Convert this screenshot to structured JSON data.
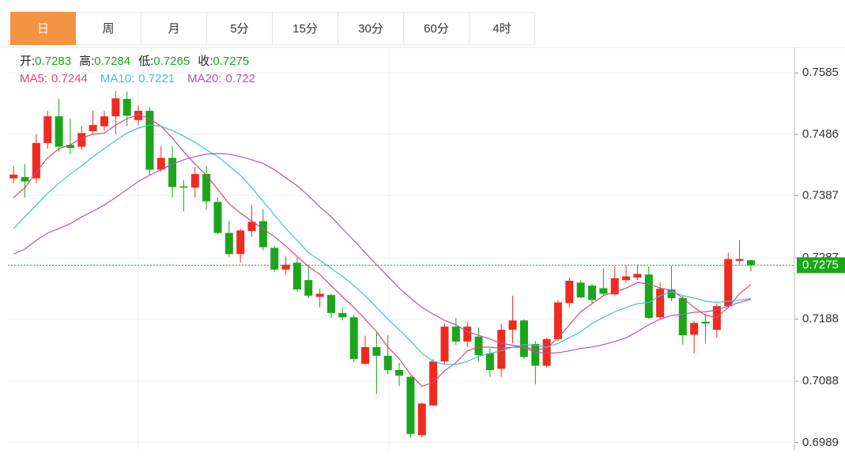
{
  "tabs": [
    "日",
    "周",
    "月",
    "5分",
    "15分",
    "30分",
    "60分",
    "4时"
  ],
  "chart_data": {
    "type": "candlestick",
    "ohlc_labels": [
      "开:",
      "高:",
      "低:",
      "收:"
    ],
    "up_color": "#ef2b1f",
    "down_color": "#1aa51a",
    "open": [
      0.7415,
      0.7417,
      0.7415,
      0.7472,
      0.7515,
      0.7469,
      0.7466,
      0.7491,
      0.7499,
      0.7515,
      0.7543,
      0.7509,
      0.7524,
      0.7429,
      0.7448,
      0.7402,
      0.74,
      0.7422,
      0.7377,
      0.7327,
      0.7293,
      0.733,
      0.7346,
      0.7303,
      0.7268,
      0.7279,
      0.7251,
      0.7224,
      0.7227,
      0.7198,
      0.7191,
      0.7116,
      0.7143,
      0.7129,
      0.7106,
      0.7095,
      0.7001,
      0.7049,
      0.712,
      0.7176,
      0.7152,
      0.716,
      0.7133,
      0.7108,
      0.7171,
      0.7186,
      0.7148,
      0.7113,
      0.7156,
      0.7214,
      0.7247,
      0.7242,
      0.7238,
      0.7228,
      0.7251,
      0.7255,
      0.726,
      0.7191,
      0.7236,
      0.7222,
      0.7163,
      0.7184,
      0.7171,
      0.7209,
      0.7282,
      0.7283
    ],
    "high": [
      0.7435,
      0.7438,
      0.7486,
      0.7524,
      0.7543,
      0.7511,
      0.7499,
      0.7524,
      0.7524,
      0.7556,
      0.7555,
      0.7533,
      0.753,
      0.7467,
      0.7467,
      0.7412,
      0.7433,
      0.7435,
      0.7384,
      0.7346,
      0.7334,
      0.7372,
      0.7365,
      0.7306,
      0.7289,
      0.7287,
      0.7276,
      0.7237,
      0.7229,
      0.7207,
      0.7196,
      0.7162,
      0.7168,
      0.7162,
      0.7118,
      0.7097,
      0.7054,
      0.7124,
      0.7181,
      0.719,
      0.7184,
      0.7175,
      0.7141,
      0.7181,
      0.7226,
      0.7188,
      0.7153,
      0.7158,
      0.7219,
      0.7255,
      0.7251,
      0.7245,
      0.727,
      0.7274,
      0.7274,
      0.7276,
      0.7273,
      0.7247,
      0.7274,
      0.7226,
      0.7185,
      0.7198,
      0.7213,
      0.7295,
      0.7315,
      0.7284
    ],
    "low": [
      0.7407,
      0.7384,
      0.7407,
      0.7463,
      0.7458,
      0.7454,
      0.7461,
      0.7486,
      0.7492,
      0.7486,
      0.7499,
      0.7501,
      0.742,
      0.7425,
      0.7384,
      0.7362,
      0.7384,
      0.7365,
      0.7325,
      0.7288,
      0.7279,
      0.7321,
      0.7299,
      0.7264,
      0.726,
      0.7232,
      0.7222,
      0.7207,
      0.719,
      0.7186,
      0.7118,
      0.7115,
      0.7067,
      0.7099,
      0.708,
      0.6997,
      0.6997,
      0.7048,
      0.7115,
      0.7146,
      0.7143,
      0.712,
      0.7095,
      0.7095,
      0.7149,
      0.7124,
      0.7083,
      0.711,
      0.7152,
      0.7207,
      0.7222,
      0.7213,
      0.7226,
      0.7226,
      0.7247,
      0.7251,
      0.7188,
      0.7188,
      0.7217,
      0.7147,
      0.7133,
      0.7149,
      0.7158,
      0.7207,
      0.7276,
      0.7265
    ],
    "close": [
      0.7421,
      0.741,
      0.7472,
      0.7515,
      0.7466,
      0.7464,
      0.7488,
      0.7501,
      0.7515,
      0.7544,
      0.7516,
      0.7524,
      0.7429,
      0.7448,
      0.7401,
      0.74,
      0.7422,
      0.7378,
      0.7327,
      0.7293,
      0.7331,
      0.7345,
      0.7304,
      0.7268,
      0.7276,
      0.7236,
      0.7226,
      0.7229,
      0.7198,
      0.7191,
      0.7124,
      0.7143,
      0.7129,
      0.7106,
      0.7097,
      0.7003,
      0.7052,
      0.712,
      0.7176,
      0.7152,
      0.7176,
      0.713,
      0.7106,
      0.7171,
      0.7186,
      0.7127,
      0.7113,
      0.7156,
      0.7215,
      0.725,
      0.7223,
      0.7219,
      0.7229,
      0.7254,
      0.7257,
      0.7261,
      0.719,
      0.7237,
      0.7222,
      0.7162,
      0.7182,
      0.7181,
      0.7209,
      0.7285,
      0.7285,
      0.7275
    ],
    "series": [
      {
        "name": "MA5:",
        "color": "#e6447a",
        "values": [
          0.7384,
          0.74,
          0.7425,
          0.7448,
          0.7463,
          0.7469,
          0.748,
          0.7486,
          0.7488,
          0.7501,
          0.7511,
          0.7518,
          0.7511,
          0.7499,
          0.748,
          0.7458,
          0.7438,
          0.742,
          0.7397,
          0.7374,
          0.7359,
          0.7346,
          0.7334,
          0.7321,
          0.7306,
          0.7289,
          0.7273,
          0.726,
          0.7242,
          0.7224,
          0.7207,
          0.7188,
          0.7168,
          0.7143,
          0.7124,
          0.7099,
          0.708,
          0.7086,
          0.7105,
          0.7118,
          0.7137,
          0.7143,
          0.7143,
          0.7141,
          0.7143,
          0.7143,
          0.7139,
          0.7141,
          0.7158,
          0.7179,
          0.72,
          0.7213,
          0.7226,
          0.7232,
          0.7238,
          0.7247,
          0.7245,
          0.7238,
          0.7235,
          0.7222,
          0.7207,
          0.7194,
          0.7191,
          0.7207,
          0.7229,
          0.7244
        ]
      },
      {
        "name": "MA10:",
        "color": "#3cc2d6",
        "values": [
          0.7334,
          0.7353,
          0.7372,
          0.7391,
          0.7407,
          0.7422,
          0.7435,
          0.745,
          0.7463,
          0.7476,
          0.7488,
          0.7496,
          0.7501,
          0.7499,
          0.7492,
          0.7483,
          0.7473,
          0.7461,
          0.745,
          0.7435,
          0.742,
          0.74,
          0.7378,
          0.7356,
          0.7334,
          0.7315,
          0.7295,
          0.7283,
          0.727,
          0.7257,
          0.7242,
          0.7226,
          0.7207,
          0.7188,
          0.7171,
          0.7153,
          0.7133,
          0.712,
          0.7115,
          0.7115,
          0.712,
          0.7128,
          0.7133,
          0.7137,
          0.7143,
          0.7147,
          0.7146,
          0.7143,
          0.7149,
          0.7158,
          0.7168,
          0.7181,
          0.7191,
          0.72,
          0.7207,
          0.7213,
          0.7215,
          0.7226,
          0.7232,
          0.7226,
          0.7222,
          0.7217,
          0.7215,
          0.7217,
          0.7219,
          0.7221
        ]
      },
      {
        "name": "MA20:",
        "color": "#b053c2",
        "values": [
          0.7293,
          0.7301,
          0.7315,
          0.7327,
          0.7334,
          0.7342,
          0.7353,
          0.7362,
          0.7372,
          0.7384,
          0.7397,
          0.741,
          0.742,
          0.7429,
          0.7438,
          0.7445,
          0.745,
          0.7454,
          0.7455,
          0.7454,
          0.745,
          0.7445,
          0.7439,
          0.7429,
          0.7416,
          0.7403,
          0.7387,
          0.7369,
          0.7353,
          0.7334,
          0.7315,
          0.7295,
          0.7276,
          0.7257,
          0.7238,
          0.7222,
          0.7207,
          0.7196,
          0.7186,
          0.7179,
          0.7168,
          0.7162,
          0.7156,
          0.7149,
          0.7146,
          0.7142,
          0.7135,
          0.7133,
          0.7134,
          0.7137,
          0.7141,
          0.7143,
          0.7147,
          0.7152,
          0.7158,
          0.7168,
          0.7179,
          0.7188,
          0.7194,
          0.7196,
          0.7199,
          0.72,
          0.7203,
          0.7209,
          0.7215,
          0.722
        ]
      }
    ],
    "ylim": [
      0.6976,
      0.7626
    ],
    "yticks": [
      0.7585,
      0.7486,
      0.7387,
      0.7287,
      0.7188,
      0.7088,
      0.6989
    ],
    "grid": true
  }
}
